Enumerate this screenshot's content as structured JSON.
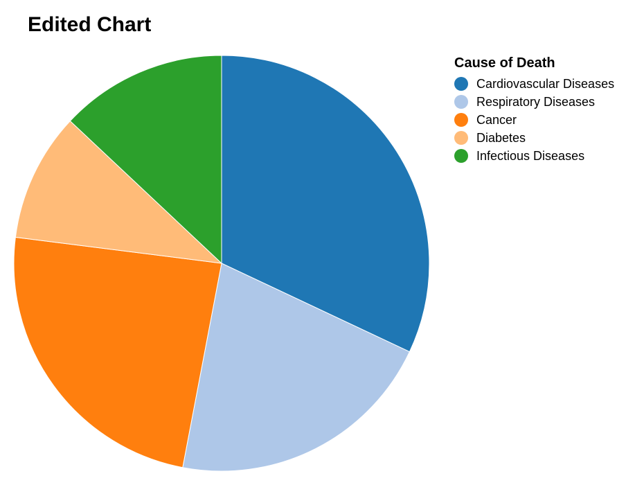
{
  "chart_data": {
    "type": "pie",
    "title": "Edited Chart",
    "legend_title": "Cause of Death",
    "legend_position": "right",
    "categories": [
      "Cardiovascular Diseases",
      "Respiratory Diseases",
      "Cancer",
      "Diabetes",
      "Infectious Diseases"
    ],
    "values": [
      32,
      21,
      24,
      10,
      13
    ],
    "colors": [
      "#1f77b4",
      "#aec7e8",
      "#ff7f0e",
      "#ffbb78",
      "#2ca02c"
    ]
  }
}
